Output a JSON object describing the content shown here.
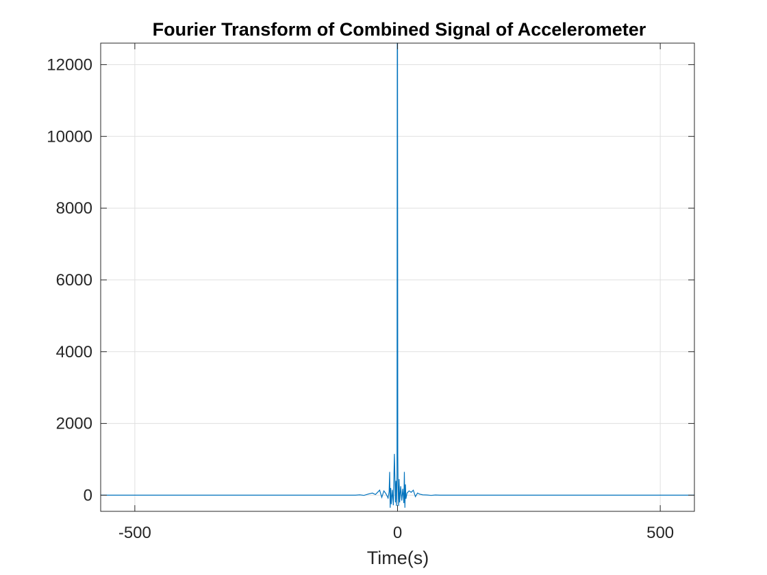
{
  "chart_data": {
    "type": "line",
    "title": "Fourier Transform of Combined Signal of Accelerometer",
    "xlabel": "Time(s)",
    "ylabel": "",
    "xlim": [
      -565,
      565
    ],
    "ylim": [
      -450,
      12600
    ],
    "xticks": [
      -500,
      0,
      500
    ],
    "yticks": [
      0,
      2000,
      4000,
      6000,
      8000,
      10000,
      12000
    ],
    "xtick_labels": [
      "-500",
      "0",
      "500"
    ],
    "ytick_labels": [
      "0",
      "2000",
      "4000",
      "6000",
      "8000",
      "10000",
      "12000"
    ],
    "grid": true,
    "legend": "none",
    "series": [
      {
        "color": "#0072BD",
        "x": [
          -565,
          -80,
          -72,
          -64,
          -56,
          -48,
          -42,
          -38,
          -34,
          -30,
          -26,
          -22,
          -18,
          -16,
          -15,
          -14,
          -13,
          -12,
          -10,
          -8,
          -6,
          -4,
          -3,
          -2,
          -1,
          -0.5,
          0,
          0.5,
          1,
          2,
          3,
          4,
          6,
          8,
          10,
          12,
          13,
          14,
          15,
          16,
          18,
          22,
          26,
          30,
          34,
          38,
          42,
          48,
          56,
          64,
          72,
          80,
          565
        ],
        "y": [
          0,
          0,
          10,
          -5,
          30,
          60,
          20,
          80,
          140,
          -60,
          120,
          40,
          -80,
          100,
          650,
          -350,
          200,
          -250,
          150,
          -280,
          1150,
          -200,
          400,
          -300,
          600,
          12600,
          12600,
          1100,
          300,
          -300,
          450,
          -200,
          250,
          -150,
          180,
          -220,
          650,
          -350,
          300,
          -100,
          60,
          120,
          80,
          140,
          -40,
          60,
          30,
          10,
          5,
          -5,
          5,
          0,
          0
        ]
      }
    ]
  }
}
